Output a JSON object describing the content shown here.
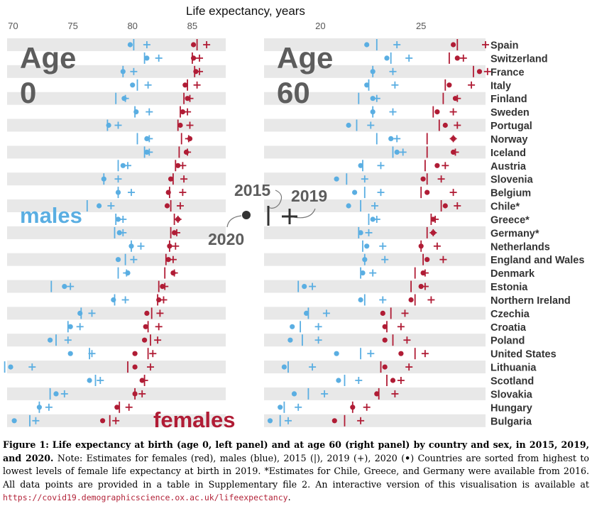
{
  "chart_data": {
    "type": "scatter",
    "title": "Life expectancy, years",
    "colors": {
      "female": "#b01c35",
      "male": "#5aaee2",
      "band": "#e8e8e8",
      "label_gray": "#5d5d5d"
    },
    "panels": [
      {
        "label_line1": "Age",
        "label_line2": "0",
        "xlim": [
          69.5,
          87.8
        ],
        "ticks": [
          70,
          75,
          80,
          85
        ]
      },
      {
        "label_line1": "Age",
        "label_line2": "60",
        "xlim": [
          17.2,
          28.2
        ],
        "ticks": [
          20,
          25
        ]
      }
    ],
    "annotations": {
      "males": "males",
      "females": "females",
      "y2015": "2015",
      "y2019": "2019",
      "y2020": "2020"
    },
    "series_order": [
      "female_2015",
      "female_2019",
      "female_2020",
      "male_2015",
      "male_2019",
      "male_2020"
    ],
    "countries": [
      "Spain",
      "Switzerland",
      "France",
      "Italy",
      "Finland",
      "Sweden",
      "Portugal",
      "Norway",
      "Iceland",
      "Austria",
      "Slovenia",
      "Belgium",
      "Chile*",
      "Greece*",
      "Germany*",
      "Netherlands",
      "England and Wales",
      "Denmark",
      "Estonia",
      "Northern Ireland",
      "Czechia",
      "Croatia",
      "Poland",
      "United States",
      "Lithuania",
      "Scotland",
      "Slovakia",
      "Hungary",
      "Bulgaria"
    ],
    "age0": {
      "female_2015": [
        85.4,
        85.0,
        85.2,
        84.6,
        84.3,
        84.0,
        83.8,
        84.1,
        83.9,
        83.6,
        83.4,
        83.1,
        83.2,
        83.5,
        83.2,
        83.1,
        82.8,
        82.7,
        82.2,
        82.1,
        81.6,
        81.3,
        81.5,
        81.3,
        79.6,
        81.0,
        80.2,
        78.9,
        78.1
      ],
      "female_2019": [
        86.2,
        85.6,
        85.6,
        85.4,
        84.8,
        84.6,
        84.8,
        84.7,
        84.6,
        84.2,
        84.3,
        84.2,
        84.0,
        83.8,
        83.7,
        83.6,
        83.4,
        83.5,
        82.7,
        82.6,
        82.3,
        82.2,
        82.1,
        81.7,
        81.5,
        81.0,
        80.8,
        79.7,
        78.6
      ],
      "female_2020": [
        85.1,
        85.1,
        85.3,
        84.4,
        84.6,
        84.2,
        84.0,
        84.8,
        84.5,
        83.8,
        83.2,
        83.0,
        82.9,
        83.8,
        83.5,
        83.1,
        83.0,
        83.4,
        82.5,
        82.2,
        81.2,
        81.1,
        81.0,
        80.2,
        80.2,
        80.8,
        80.2,
        78.7,
        77.5
      ],
      "male_2015": [
        80.1,
        81.0,
        79.2,
        80.4,
        78.6,
        80.2,
        77.9,
        80.4,
        81.0,
        78.8,
        77.6,
        78.8,
        76.2,
        78.6,
        78.5,
        79.9,
        79.4,
        78.8,
        73.2,
        78.5,
        75.7,
        74.6,
        73.6,
        76.4,
        69.3,
        76.9,
        73.1,
        72.2,
        71.4
      ],
      "male_2019": [
        81.2,
        82.2,
        80.1,
        81.3,
        79.4,
        81.4,
        78.8,
        81.4,
        81.4,
        79.6,
        78.8,
        79.9,
        78.2,
        79.2,
        79.2,
        80.7,
        80.1,
        79.5,
        74.8,
        79.4,
        76.6,
        75.6,
        74.6,
        76.6,
        71.6,
        77.3,
        74.3,
        73.0,
        71.9
      ],
      "male_2020": [
        79.8,
        81.2,
        79.2,
        80.0,
        79.3,
        80.3,
        78.0,
        81.2,
        81.2,
        79.2,
        77.6,
        78.8,
        77.2,
        78.8,
        78.9,
        79.9,
        78.8,
        79.6,
        74.3,
        78.4,
        75.6,
        74.8,
        73.1,
        74.8,
        69.8,
        76.4,
        73.6,
        72.2,
        70.1
      ]
    },
    "age60": {
      "female_2015": [
        26.8,
        26.4,
        27.6,
        26.2,
        26.1,
        25.6,
        25.9,
        25.3,
        25.3,
        25.2,
        25.3,
        25.0,
        26.0,
        25.5,
        25.3,
        25.0,
        25.1,
        24.7,
        24.5,
        24.7,
        23.5,
        23.3,
        23.6,
        24.7,
        23.0,
        23.3,
        22.9,
        21.6,
        21.2
      ],
      "female_2019": [
        28.2,
        27.1,
        28.3,
        27.5,
        26.8,
        26.6,
        26.8,
        26.6,
        26.7,
        26.2,
        26.0,
        26.6,
        26.8,
        25.7,
        25.6,
        25.8,
        26.1,
        25.2,
        25.2,
        25.5,
        24.2,
        24.0,
        24.3,
        25.2,
        24.4,
        24.0,
        23.7,
        22.3,
        22.0
      ],
      "female_2020": [
        26.6,
        26.8,
        27.9,
        26.4,
        26.7,
        25.8,
        26.2,
        26.6,
        26.6,
        25.8,
        25.1,
        25.3,
        26.2,
        25.6,
        25.6,
        25.0,
        25.3,
        25.1,
        25.0,
        24.5,
        23.1,
        23.2,
        23.2,
        24.0,
        23.2,
        23.6,
        22.8,
        21.6,
        20.7
      ],
      "male_2015": [
        22.8,
        23.5,
        22.6,
        22.4,
        21.9,
        22.6,
        21.8,
        22.8,
        23.6,
        22.1,
        21.3,
        22.2,
        22.0,
        22.4,
        21.9,
        22.1,
        22.2,
        22.0,
        18.9,
        22.2,
        19.4,
        19.0,
        19.1,
        22.0,
        18.4,
        21.2,
        19.4,
        18.2,
        18.0
      ],
      "male_2019": [
        23.8,
        24.4,
        23.6,
        23.7,
        22.8,
        23.6,
        22.5,
        23.8,
        24.1,
        23.0,
        22.2,
        23.0,
        22.7,
        22.8,
        22.4,
        23.1,
        23.2,
        22.6,
        19.6,
        23.1,
        20.3,
        19.9,
        19.9,
        22.5,
        19.6,
        21.9,
        20.2,
        18.9,
        18.4
      ],
      "male_2020": [
        22.3,
        23.3,
        22.6,
        22.3,
        22.6,
        22.6,
        21.4,
        23.5,
        23.8,
        22.0,
        20.8,
        21.7,
        21.4,
        22.6,
        22.0,
        22.3,
        22.2,
        22.1,
        19.2,
        22.0,
        19.3,
        18.6,
        18.5,
        20.8,
        18.2,
        20.9,
        18.7,
        18.0,
        17.5
      ]
    }
  },
  "caption": {
    "figure_label": "Figure 1:",
    "bold_text": "Life expectancy at birth (age 0, left panel) and at age 60 (right panel) by country and sex, in 2015, 2019, and 2020.",
    "note_intro": "Note: Estimates for females (red), males (blue), 2015 (|), 2019 (+), 2020 (",
    "note_dot": "•",
    "note_rest": ") Countries are sorted from highest to lowest levels of female life expectancy at birth in 2019. *Estimates for Chile, Greece, and Germany were available from 2016. All data points are provided in a table in Supplementary file 2. An interactive version of this visualisation is available at",
    "url": "https://covid19.demographicscience.ox.ac.uk/lifeexpectancy",
    "end": "."
  }
}
